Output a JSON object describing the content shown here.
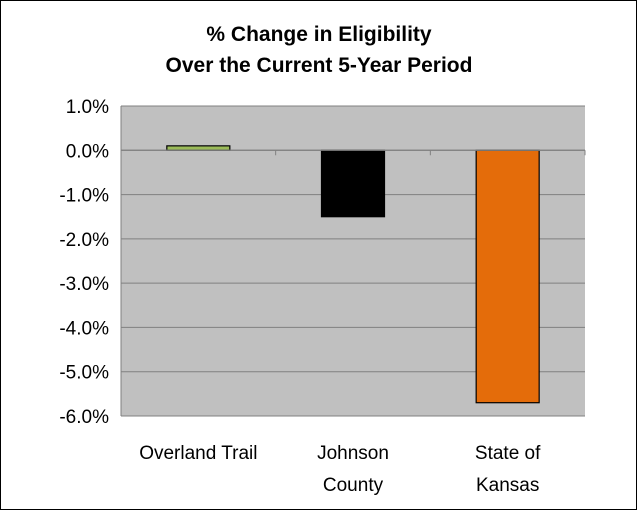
{
  "chart_data": {
    "type": "bar",
    "title_lines": [
      "% Change in Eligibility",
      "Over the Current 5-Year Period"
    ],
    "categories": [
      [
        "Overland Trail"
      ],
      [
        "Johnson",
        "County"
      ],
      [
        "State of",
        "Kansas"
      ]
    ],
    "values": [
      0.1,
      -1.5,
      -5.7
    ],
    "bar_colors": [
      "#9bbb59",
      "#000000",
      "#e46c0a"
    ],
    "ylim": [
      -6.0,
      1.0
    ],
    "y_ticks": [
      1.0,
      0.0,
      -1.0,
      -2.0,
      -3.0,
      -4.0,
      -5.0,
      -6.0
    ],
    "y_tick_labels": [
      "1.0%",
      "0.0%",
      "-1.0%",
      "-2.0%",
      "-3.0%",
      "-4.0%",
      "-5.0%",
      "-6.0%"
    ],
    "xlabel": "",
    "ylabel": "",
    "grid": true,
    "legend": false,
    "plot_background": "#c0c0c0",
    "grid_color": "#808080"
  }
}
